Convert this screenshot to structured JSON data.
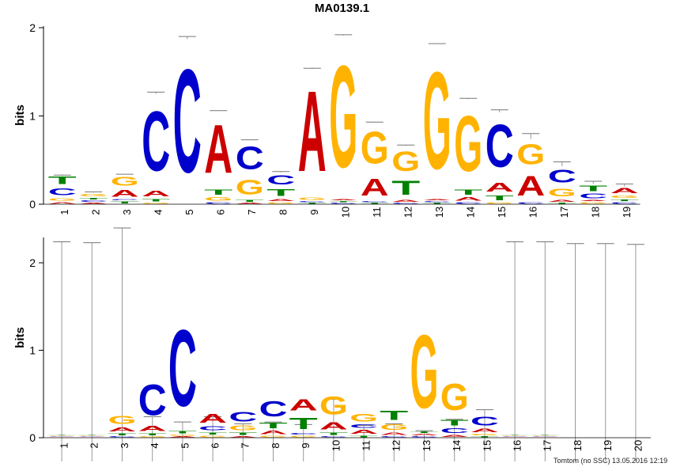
{
  "title": "MA0139.1",
  "footer": "Tomtom (no SSC) 13.05.2016 12:19",
  "colors": {
    "A": "#cc0000",
    "C": "#0000cc",
    "G": "#ffb300",
    "T": "#008000"
  },
  "chart_data": [
    {
      "type": "sequence-logo",
      "name": "top",
      "ylabel": "bits",
      "ylim": [
        0,
        2
      ],
      "yticks": [
        "0",
        "1",
        "2"
      ],
      "positions": [
        "1",
        "2",
        "3",
        "4",
        "5",
        "6",
        "7",
        "8",
        "9",
        "10",
        "11",
        "12",
        "13",
        "14",
        "15",
        "16",
        "17",
        "18",
        "19"
      ],
      "stacks": [
        [
          [
            "A",
            0.03
          ],
          [
            "G",
            0.05
          ],
          [
            "C",
            0.12
          ],
          [
            "T",
            0.14
          ]
        ],
        [
          [
            "A",
            0.02
          ],
          [
            "C",
            0.03
          ],
          [
            "T",
            0.03
          ],
          [
            "G",
            0.05
          ]
        ],
        [
          [
            "T",
            0.04
          ],
          [
            "C",
            0.02
          ],
          [
            "A",
            0.12
          ],
          [
            "G",
            0.16
          ]
        ],
        [
          [
            "G",
            0.02
          ],
          [
            "T",
            0.05
          ],
          [
            "A",
            0.1
          ],
          [
            "C",
            1.08
          ]
        ],
        [
          [
            "C",
            1.87
          ]
        ],
        [
          [
            "C",
            0.03
          ],
          [
            "G",
            0.06
          ],
          [
            "T",
            0.09
          ],
          [
            "A",
            0.88
          ]
        ],
        [
          [
            "A",
            0.02
          ],
          [
            "T",
            0.04
          ],
          [
            "G",
            0.26
          ],
          [
            "C",
            0.41
          ]
        ],
        [
          [
            "G",
            0.03
          ],
          [
            "A",
            0.04
          ],
          [
            "T",
            0.12
          ],
          [
            "C",
            0.17
          ]
        ],
        [
          [
            "T",
            0.02
          ],
          [
            "C",
            0.02
          ],
          [
            "G",
            0.05
          ],
          [
            "A",
            1.46
          ]
        ],
        [
          [
            "C",
            0.02
          ],
          [
            "T",
            0.02
          ],
          [
            "A",
            0.02
          ],
          [
            "G",
            1.85
          ]
        ],
        [
          [
            "T",
            0.02
          ],
          [
            "C",
            0.02
          ],
          [
            "A",
            0.31
          ],
          [
            "G",
            0.58
          ]
        ],
        [
          [
            "C",
            0.02
          ],
          [
            "A",
            0.04
          ],
          [
            "T",
            0.25
          ],
          [
            "G",
            0.35
          ]
        ],
        [
          [
            "T",
            0.02
          ],
          [
            "C",
            0.02
          ],
          [
            "A",
            0.02
          ],
          [
            "G",
            1.76
          ]
        ],
        [
          [
            "C",
            0.03
          ],
          [
            "A",
            0.06
          ],
          [
            "T",
            0.09
          ],
          [
            "G",
            1.01
          ]
        ],
        [
          [
            "G",
            0.03
          ],
          [
            "T",
            0.08
          ],
          [
            "A",
            0.16
          ],
          [
            "C",
            0.77
          ]
        ],
        [
          [
            "C",
            0.03
          ],
          [
            "A",
            0.35
          ],
          [
            "G",
            0.36
          ]
        ],
        [
          [
            "T",
            0.02
          ],
          [
            "A",
            0.04
          ],
          [
            "G",
            0.14
          ],
          [
            "C",
            0.23
          ]
        ],
        [
          [
            "G",
            0.03
          ],
          [
            "A",
            0.02
          ],
          [
            "C",
            0.08
          ],
          [
            "T",
            0.1
          ]
        ],
        [
          [
            "C",
            0.03
          ],
          [
            "T",
            0.03
          ],
          [
            "G",
            0.05
          ],
          [
            "A",
            0.09
          ]
        ]
      ],
      "errorbars": [
        0.33,
        0.14,
        0.34,
        1.27,
        1.9,
        1.06,
        0.73,
        0.37,
        1.54,
        1.92,
        0.93,
        0.67,
        1.82,
        1.2,
        1.07,
        0.8,
        0.48,
        0.26,
        0.23
      ]
    },
    {
      "type": "sequence-logo",
      "name": "bottom",
      "ylabel": "bits",
      "ylim": [
        0,
        2.2
      ],
      "yticks": [
        "0",
        "1",
        "2"
      ],
      "positions": [
        "1",
        "2",
        "3",
        "4",
        "5",
        "6",
        "7",
        "8",
        "9",
        "10",
        "11",
        "12",
        "13",
        "14",
        "15",
        "16",
        "17",
        "18",
        "19",
        "20"
      ],
      "stacks": [
        [
          [
            "A",
            0.01
          ],
          [
            "C",
            0.01
          ],
          [
            "G",
            0.01
          ],
          [
            "T",
            0.01
          ]
        ],
        [
          [
            "A",
            0.01
          ],
          [
            "C",
            0.01
          ],
          [
            "G",
            0.01
          ],
          [
            "T",
            0.01
          ]
        ],
        [
          [
            "C",
            0.02
          ],
          [
            "T",
            0.04
          ],
          [
            "A",
            0.07
          ],
          [
            "G",
            0.15
          ]
        ],
        [
          [
            "G",
            0.02
          ],
          [
            "T",
            0.04
          ],
          [
            "A",
            0.09
          ],
          [
            "C",
            0.56
          ]
        ],
        [
          [
            "A",
            0.02
          ],
          [
            "G",
            0.02
          ],
          [
            "T",
            0.05
          ],
          [
            "C",
            1.4
          ]
        ],
        [
          [
            "G",
            0.03
          ],
          [
            "T",
            0.04
          ],
          [
            "C",
            0.07
          ],
          [
            "A",
            0.16
          ]
        ],
        [
          [
            "A",
            0.02
          ],
          [
            "T",
            0.05
          ],
          [
            "G",
            0.08
          ],
          [
            "C",
            0.18
          ]
        ],
        [
          [
            "G",
            0.03
          ],
          [
            "A",
            0.06
          ],
          [
            "T",
            0.1
          ],
          [
            "C",
            0.28
          ]
        ],
        [
          [
            "G",
            0.03
          ],
          [
            "C",
            0.03
          ],
          [
            "T",
            0.21
          ],
          [
            "A",
            0.21
          ]
        ],
        [
          [
            "C",
            0.02
          ],
          [
            "T",
            0.05
          ],
          [
            "A",
            0.13
          ],
          [
            "G",
            0.33
          ]
        ],
        [
          [
            "T",
            0.03
          ],
          [
            "A",
            0.07
          ],
          [
            "C",
            0.06
          ],
          [
            "G",
            0.14
          ]
        ],
        [
          [
            "C",
            0.02
          ],
          [
            "A",
            0.05
          ],
          [
            "G",
            0.1
          ],
          [
            "T",
            0.17
          ]
        ],
        [
          [
            "C",
            0.02
          ],
          [
            "A",
            0.03
          ],
          [
            "T",
            0.03
          ],
          [
            "G",
            1.34
          ]
        ],
        [
          [
            "A",
            0.04
          ],
          [
            "C",
            0.08
          ],
          [
            "T",
            0.1
          ],
          [
            "G",
            0.49
          ]
        ],
        [
          [
            "T",
            0.02
          ],
          [
            "G",
            0.03
          ],
          [
            "A",
            0.06
          ],
          [
            "C",
            0.16
          ]
        ],
        [
          [
            "A",
            0.01
          ],
          [
            "C",
            0.01
          ],
          [
            "G",
            0.01
          ],
          [
            "T",
            0.01
          ]
        ],
        [
          [
            "A",
            0.01
          ],
          [
            "C",
            0.01
          ],
          [
            "G",
            0.01
          ],
          [
            "T",
            0.01
          ]
        ],
        [],
        [],
        []
      ],
      "errorbars": [
        2.24,
        2.23,
        2.49,
        0.24,
        0.18,
        0.24,
        0.16,
        0.18,
        0.15,
        0.44,
        0.14,
        0.16,
        0.08,
        0.21,
        0.32,
        2.24,
        2.24,
        2.22,
        2.22,
        2.21
      ],
      "errorbars_low": [
        0,
        0,
        0,
        0,
        0,
        0,
        0,
        0,
        0,
        0.12,
        0,
        0,
        0,
        0,
        0,
        0,
        0,
        0,
        0,
        0
      ]
    }
  ]
}
